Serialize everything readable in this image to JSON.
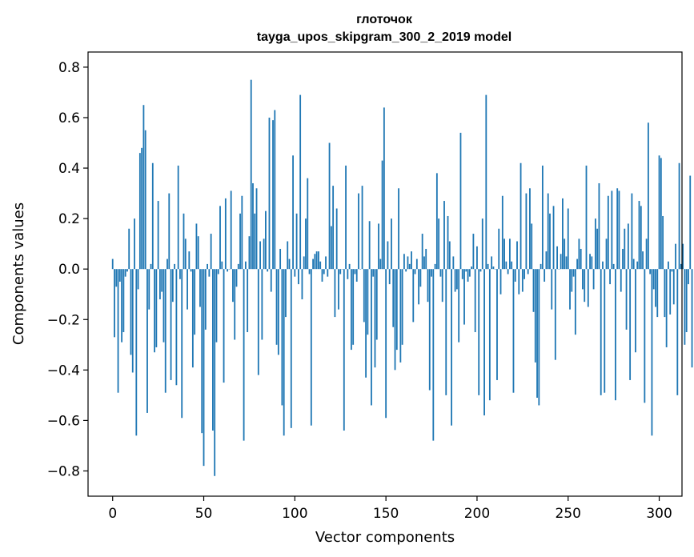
{
  "chart_data": {
    "type": "bar",
    "title": "глоточок",
    "subtitle": "tayga_upos_skipgram_300_2_2019 model",
    "xlabel": "Vector components",
    "ylabel": "Components values",
    "xlim": [
      -13.5,
      312.5
    ],
    "ylim": [
      -0.9,
      0.86
    ],
    "xticks": [
      0,
      50,
      100,
      150,
      200,
      250,
      300
    ],
    "xtick_labels": [
      "0",
      "50",
      "100",
      "150",
      "200",
      "250",
      "300"
    ],
    "yticks": [
      -0.8,
      -0.6,
      -0.4,
      -0.2,
      0.0,
      0.2,
      0.4,
      0.6,
      0.8
    ],
    "ytick_labels": [
      "−0.8",
      "−0.6",
      "−0.4",
      "−0.2",
      "0.0",
      "0.2",
      "0.4",
      "0.6",
      "0.8"
    ],
    "grid": false,
    "bar_color": "#1f77b4",
    "categories_start": 0,
    "values": [
      0.04,
      -0.27,
      -0.07,
      -0.49,
      -0.05,
      -0.29,
      -0.25,
      -0.03,
      -0.01,
      0.16,
      -0.34,
      -0.41,
      0.2,
      -0.66,
      -0.08,
      0.46,
      0.48,
      0.65,
      0.55,
      -0.57,
      -0.16,
      0.02,
      0.42,
      -0.33,
      -0.31,
      0.27,
      -0.12,
      -0.09,
      -0.29,
      -0.49,
      0.04,
      0.3,
      -0.44,
      -0.13,
      0.02,
      -0.46,
      0.41,
      -0.04,
      -0.59,
      0.22,
      0.12,
      -0.16,
      0.07,
      -0.01,
      -0.39,
      -0.26,
      0.18,
      0.13,
      -0.15,
      -0.65,
      -0.78,
      -0.24,
      0.02,
      -0.03,
      0.14,
      -0.64,
      -0.82,
      -0.29,
      -0.02,
      0.25,
      0.03,
      -0.45,
      0.28,
      -0.01,
      0.0,
      0.31,
      -0.13,
      -0.28,
      -0.07,
      0.02,
      0.22,
      0.29,
      -0.68,
      0.03,
      -0.25,
      0.13,
      0.75,
      0.34,
      0.22,
      0.32,
      -0.42,
      0.11,
      -0.28,
      0.12,
      0.23,
      -0.01,
      0.6,
      -0.09,
      0.59,
      0.63,
      -0.3,
      -0.34,
      0.08,
      -0.54,
      -0.66,
      -0.19,
      0.11,
      0.04,
      -0.63,
      0.45,
      -0.03,
      0.22,
      -0.06,
      0.69,
      -0.12,
      0.05,
      0.2,
      0.36,
      -0.02,
      -0.62,
      0.04,
      0.06,
      0.07,
      0.07,
      0.03,
      -0.05,
      -0.02,
      0.05,
      -0.03,
      0.5,
      0.17,
      0.33,
      -0.19,
      0.24,
      -0.16,
      -0.02,
      0.0,
      -0.64,
      0.41,
      -0.04,
      0.02,
      -0.32,
      -0.3,
      -0.02,
      -0.05,
      0.3,
      0.0,
      0.33,
      -0.21,
      -0.43,
      -0.26,
      0.19,
      -0.54,
      -0.03,
      -0.39,
      -0.28,
      0.18,
      0.04,
      0.43,
      0.64,
      -0.59,
      0.11,
      -0.06,
      0.2,
      -0.23,
      -0.4,
      -0.32,
      0.32,
      -0.37,
      -0.3,
      0.06,
      -0.01,
      0.05,
      0.02,
      0.07,
      -0.21,
      -0.02,
      0.04,
      -0.14,
      -0.07,
      0.14,
      0.05,
      0.08,
      -0.13,
      -0.48,
      -0.03,
      -0.68,
      0.02,
      0.38,
      0.2,
      -0.03,
      -0.13,
      0.27,
      -0.5,
      0.21,
      0.11,
      -0.62,
      0.05,
      -0.09,
      -0.08,
      -0.29,
      0.54,
      -0.04,
      -0.22,
      -0.01,
      -0.05,
      -0.03,
      0.01,
      0.14,
      -0.25,
      0.09,
      -0.5,
      -0.01,
      0.2,
      -0.58,
      0.69,
      0.02,
      -0.52,
      0.05,
      0.01,
      0.0,
      -0.44,
      0.16,
      -0.1,
      0.29,
      0.12,
      0.03,
      -0.02,
      0.12,
      0.03,
      -0.49,
      -0.05,
      0.11,
      -0.1,
      0.42,
      -0.09,
      -0.04,
      0.3,
      -0.02,
      0.32,
      0.18,
      -0.17,
      -0.37,
      -0.51,
      -0.54,
      0.02,
      0.41,
      -0.05,
      0.07,
      0.3,
      0.22,
      -0.16,
      0.25,
      -0.36,
      0.09,
      0.0,
      0.06,
      0.28,
      0.12,
      0.05,
      0.24,
      -0.16,
      -0.09,
      -0.03,
      -0.26,
      0.04,
      0.12,
      0.08,
      -0.08,
      -0.13,
      0.41,
      -0.15,
      0.06,
      0.05,
      -0.08,
      0.2,
      0.16,
      0.34,
      -0.5,
      0.03,
      -0.49,
      0.12,
      0.29,
      -0.06,
      0.31,
      0.02,
      -0.52,
      0.32,
      0.31,
      -0.09,
      0.08,
      0.16,
      -0.24,
      0.18,
      -0.44,
      0.3,
      0.04,
      -0.33,
      0.03,
      0.27,
      0.25,
      0.07,
      -0.53,
      0.12,
      0.58,
      -0.02,
      -0.66,
      -0.08,
      -0.15,
      -0.19,
      0.45,
      0.44,
      0.21,
      -0.19,
      -0.31,
      0.03,
      -0.18,
      -0.01,
      -0.14,
      0.1,
      -0.5,
      0.42,
      0.02,
      0.1,
      -0.3,
      -0.25,
      -0.06,
      0.37,
      -0.39
    ]
  }
}
